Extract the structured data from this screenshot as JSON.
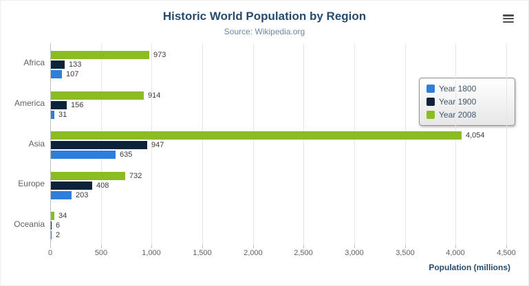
{
  "header": {
    "title": "Historic World Population by Region",
    "subtitle": "Source: Wikipedia.org"
  },
  "toolbar": {
    "menu_icon": "hamburger-icon"
  },
  "chart_data": {
    "type": "bar",
    "orientation": "horizontal",
    "title": "Historic World Population by Region",
    "subtitle": "Source: Wikipedia.org",
    "categories": [
      "Africa",
      "America",
      "Asia",
      "Europe",
      "Oceania"
    ],
    "series": [
      {
        "name": "Year 1800",
        "color": "#2f7ed8",
        "values": [
          107,
          31,
          635,
          203,
          2
        ]
      },
      {
        "name": "Year 1900",
        "color": "#0d233a",
        "values": [
          133,
          156,
          947,
          408,
          6
        ]
      },
      {
        "name": "Year 2008",
        "color": "#8bbc21",
        "values": [
          973,
          914,
          4054,
          732,
          34
        ]
      }
    ],
    "bar_display_order_top_to_bottom": [
      "Year 2008",
      "Year 1900",
      "Year 1800"
    ],
    "xlabel": "Population (millions)",
    "ylabel": "",
    "xlim": [
      0,
      4500
    ],
    "xticks": [
      0,
      500,
      1000,
      1500,
      2000,
      2500,
      3000,
      3500,
      4000,
      4500
    ],
    "grid": true,
    "data_labels": true,
    "legend_position": "right"
  }
}
